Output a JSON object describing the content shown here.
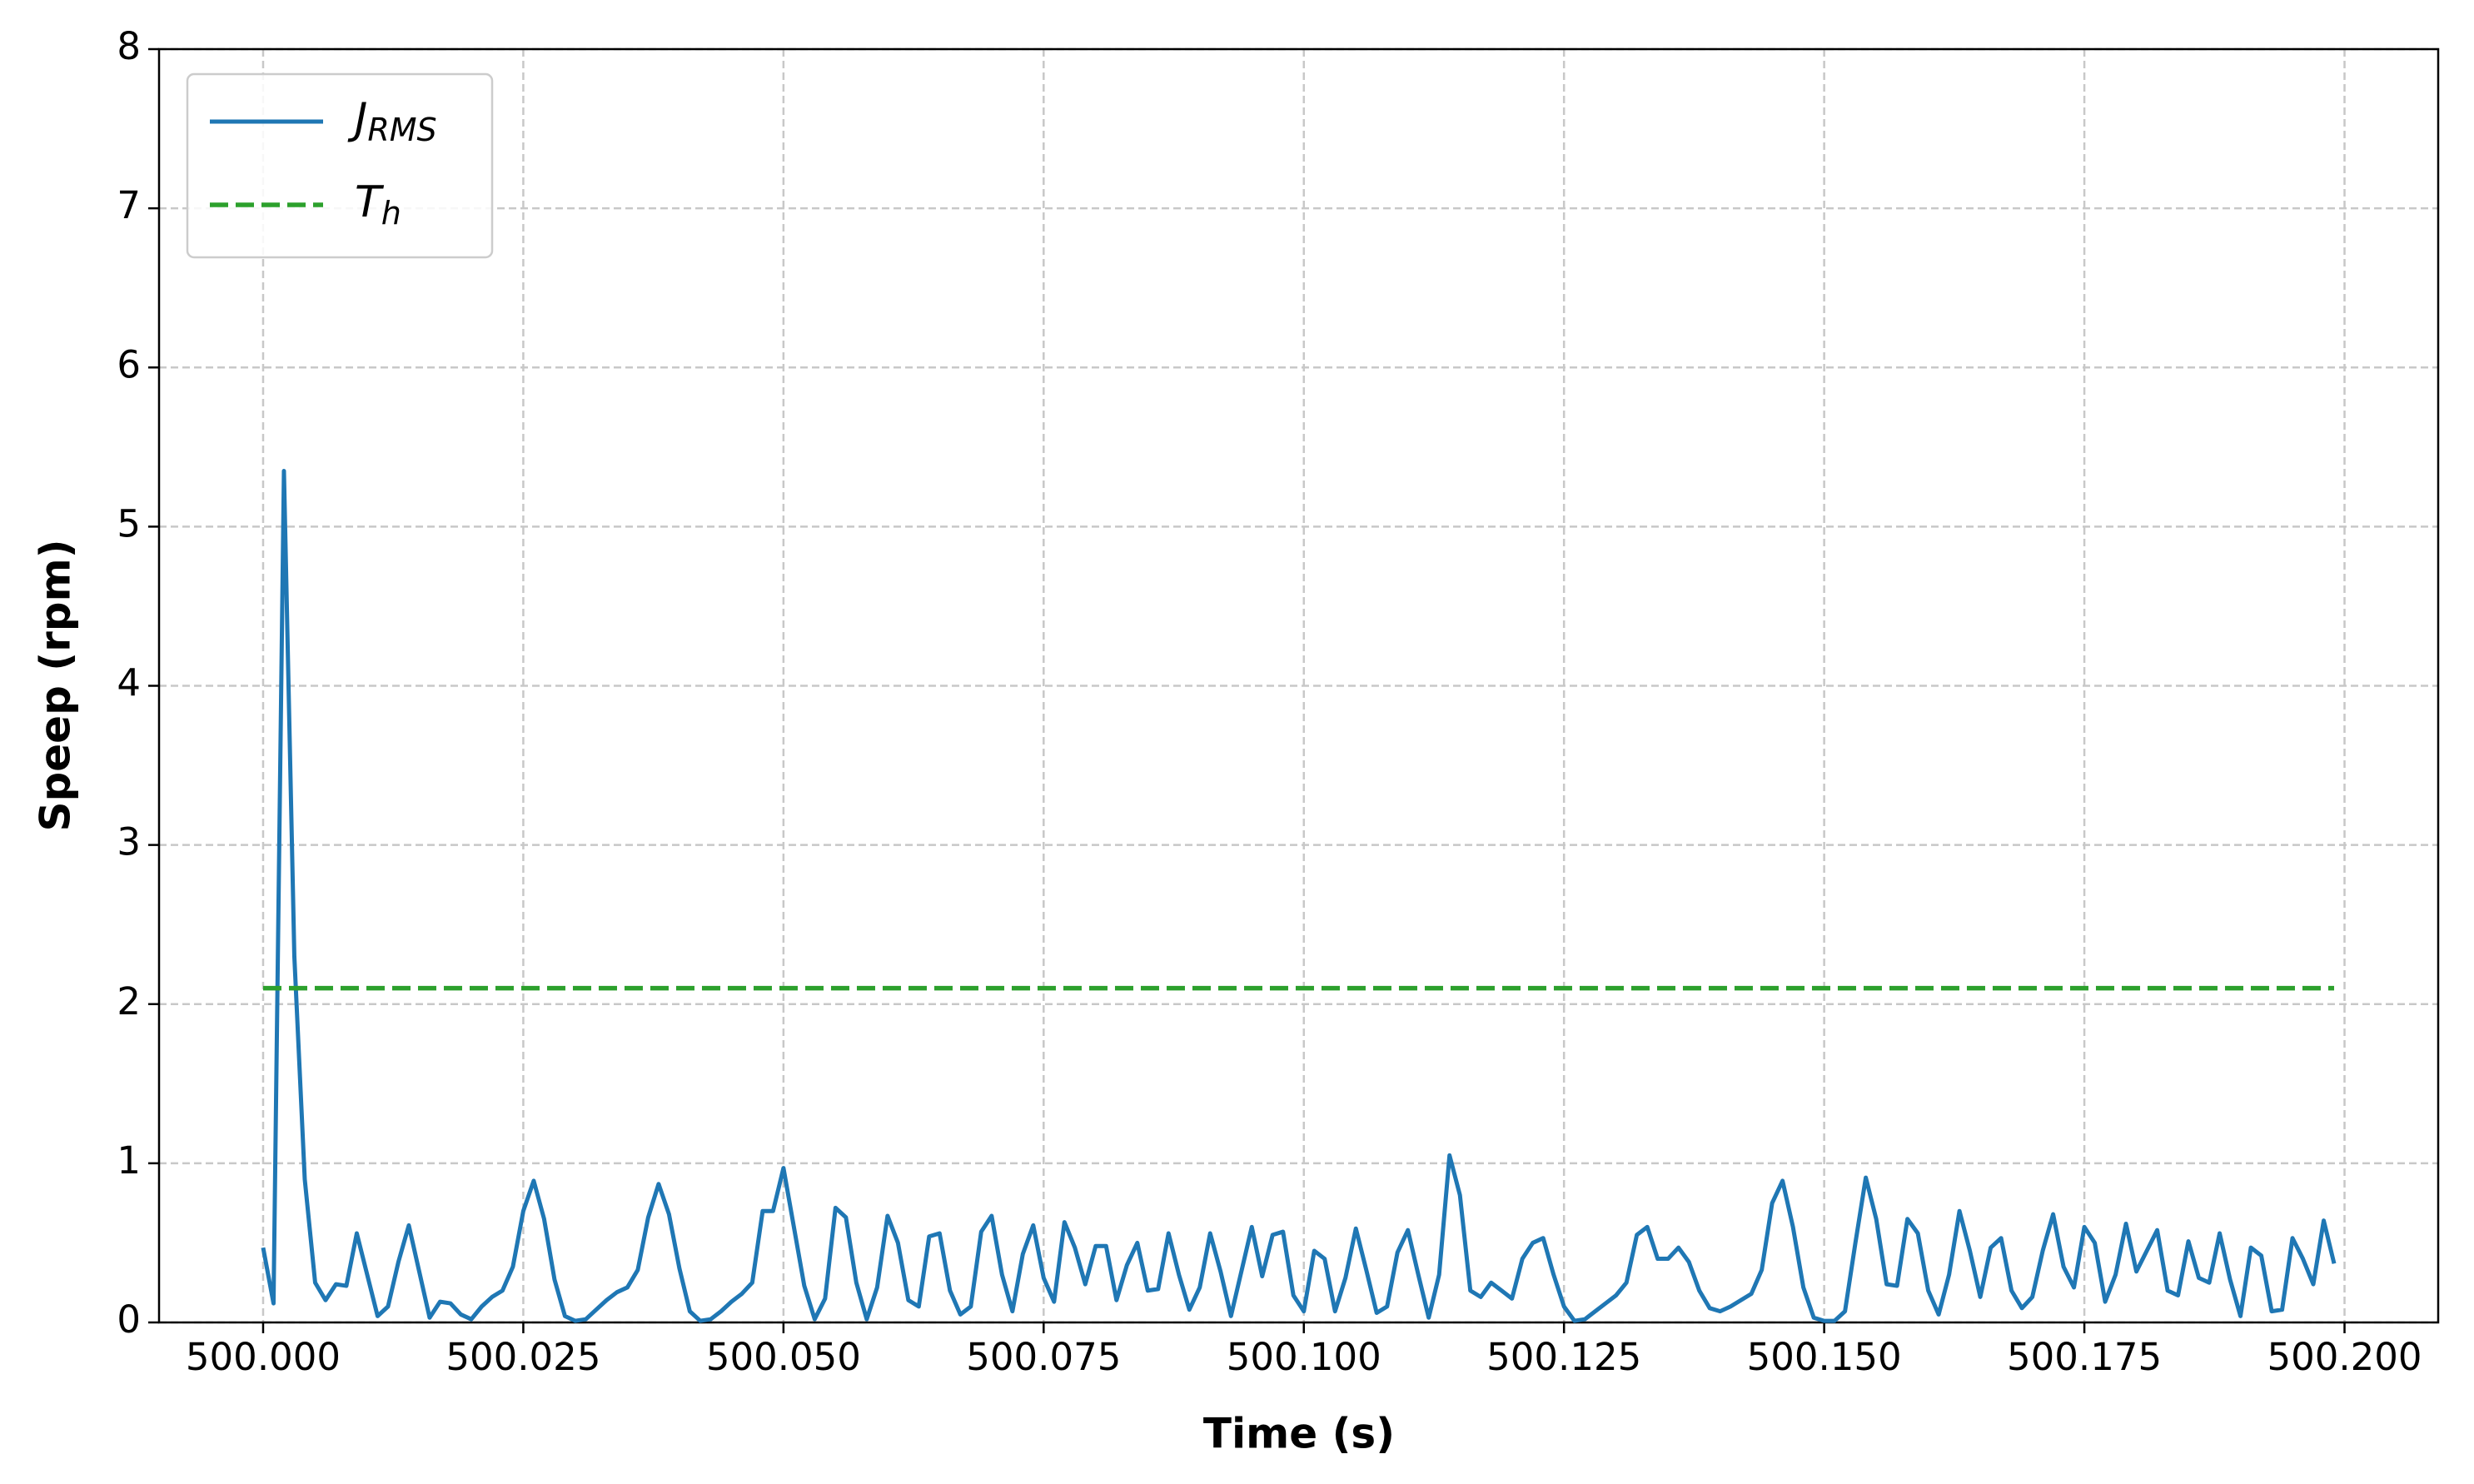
{
  "chart_data": {
    "type": "line",
    "xlabel": "Time (s)",
    "ylabel": "Speep (rpm)",
    "xlim": [
      499.99,
      500.209
    ],
    "ylim": [
      0,
      8
    ],
    "xticks": [
      {
        "value": 500.0,
        "label": "500.000"
      },
      {
        "value": 500.025,
        "label": "500.025"
      },
      {
        "value": 500.05,
        "label": "500.050"
      },
      {
        "value": 500.075,
        "label": "500.075"
      },
      {
        "value": 500.1,
        "label": "500.100"
      },
      {
        "value": 500.125,
        "label": "500.125"
      },
      {
        "value": 500.15,
        "label": "500.150"
      },
      {
        "value": 500.175,
        "label": "500.175"
      },
      {
        "value": 500.2,
        "label": "500.200"
      }
    ],
    "yticks": [
      0,
      1,
      2,
      3,
      4,
      5,
      6,
      7,
      8
    ],
    "grid": true,
    "legend": "upper left",
    "series": [
      {
        "name": "J_RMS",
        "color": "#1f77b4",
        "style": "solid",
        "x": [
          500.0,
          500.001,
          500.002,
          500.003,
          500.004,
          500.005,
          500.006,
          500.007,
          500.008,
          500.009,
          500.01,
          500.011,
          500.012,
          500.013,
          500.014,
          500.015,
          500.016,
          500.017,
          500.018,
          500.019,
          500.02,
          500.021,
          500.022,
          500.023,
          500.024,
          500.025,
          500.026,
          500.027,
          500.028,
          500.029,
          500.03,
          500.031,
          500.032,
          500.033,
          500.034,
          500.035,
          500.036,
          500.037,
          500.038,
          500.039,
          500.04,
          500.041,
          500.042,
          500.043,
          500.044,
          500.045,
          500.046,
          500.047,
          500.048,
          500.049,
          500.05,
          500.051,
          500.052,
          500.053,
          500.054,
          500.055,
          500.056,
          500.057,
          500.058,
          500.059,
          500.06,
          500.061,
          500.062,
          500.063,
          500.064,
          500.065,
          500.066,
          500.067,
          500.068,
          500.069,
          500.07,
          500.071,
          500.072,
          500.073,
          500.074,
          500.075,
          500.076,
          500.077,
          500.078,
          500.079,
          500.08,
          500.081,
          500.082,
          500.083,
          500.084,
          500.085,
          500.086,
          500.087,
          500.088,
          500.089,
          500.09,
          500.091,
          500.092,
          500.093,
          500.094,
          500.095,
          500.096,
          500.097,
          500.098,
          500.099,
          500.1,
          500.101,
          500.102,
          500.103,
          500.104,
          500.105,
          500.106,
          500.107,
          500.108,
          500.109,
          500.11,
          500.111,
          500.112,
          500.113,
          500.114,
          500.115,
          500.116,
          500.117,
          500.118,
          500.119,
          500.12,
          500.121,
          500.122,
          500.123,
          500.124,
          500.125,
          500.126,
          500.127,
          500.128,
          500.129,
          500.13,
          500.131,
          500.132,
          500.133,
          500.134,
          500.135,
          500.136,
          500.137,
          500.138,
          500.139,
          500.14,
          500.141,
          500.142,
          500.143,
          500.144,
          500.145,
          500.146,
          500.147,
          500.148,
          500.149,
          500.15,
          500.151,
          500.152,
          500.153,
          500.154,
          500.155,
          500.156,
          500.157,
          500.158,
          500.159,
          500.16,
          500.161,
          500.162,
          500.163,
          500.164,
          500.165,
          500.166,
          500.167,
          500.168,
          500.169,
          500.17,
          500.171,
          500.172,
          500.173,
          500.174,
          500.175,
          500.176,
          500.177,
          500.178,
          500.179,
          500.18,
          500.181,
          500.182,
          500.183,
          500.184,
          500.185,
          500.186,
          500.187,
          500.188,
          500.189,
          500.19,
          500.191,
          500.192,
          500.193,
          500.194,
          500.195,
          500.196,
          500.197,
          500.198,
          500.199
        ],
        "values": [
          0.47,
          0.12,
          5.35,
          2.3,
          0.9,
          0.25,
          0.14,
          0.24,
          0.23,
          0.56,
          0.3,
          0.04,
          0.1,
          0.38,
          0.61,
          0.32,
          0.03,
          0.13,
          0.12,
          0.05,
          0.02,
          0.1,
          0.16,
          0.2,
          0.35,
          0.7,
          0.89,
          0.65,
          0.27,
          0.04,
          0.01,
          0.02,
          0.08,
          0.14,
          0.19,
          0.22,
          0.33,
          0.66,
          0.87,
          0.68,
          0.34,
          0.07,
          0.01,
          0.02,
          0.07,
          0.13,
          0.18,
          0.25,
          0.7,
          0.7,
          0.97,
          0.6,
          0.23,
          0.02,
          0.15,
          0.72,
          0.66,
          0.25,
          0.02,
          0.22,
          0.67,
          0.5,
          0.14,
          0.1,
          0.54,
          0.56,
          0.2,
          0.05,
          0.1,
          0.57,
          0.67,
          0.3,
          0.07,
          0.43,
          0.61,
          0.28,
          0.13,
          0.63,
          0.47,
          0.24,
          0.48,
          0.48,
          0.14,
          0.36,
          0.5,
          0.2,
          0.21,
          0.56,
          0.3,
          0.08,
          0.22,
          0.56,
          0.32,
          0.04,
          0.32,
          0.6,
          0.29,
          0.55,
          0.57,
          0.17,
          0.07,
          0.45,
          0.4,
          0.07,
          0.28,
          0.59,
          0.33,
          0.06,
          0.1,
          0.44,
          0.58,
          0.3,
          0.03,
          0.3,
          1.05,
          0.8,
          0.2,
          0.16,
          0.25,
          0.2,
          0.15,
          0.4,
          0.5,
          0.53,
          0.3,
          0.1,
          0.01,
          0.02,
          0.07,
          0.12,
          0.17,
          0.25,
          0.55,
          0.6,
          0.4,
          0.4,
          0.47,
          0.38,
          0.2,
          0.09,
          0.07,
          0.1,
          0.14,
          0.18,
          0.33,
          0.75,
          0.89,
          0.6,
          0.22,
          0.03,
          0.01,
          0.01,
          0.07,
          0.5,
          0.91,
          0.65,
          0.24,
          0.23,
          0.65,
          0.56,
          0.2,
          0.05,
          0.3,
          0.7,
          0.45,
          0.16,
          0.47,
          0.53,
          0.2,
          0.09,
          0.16,
          0.45,
          0.68,
          0.35,
          0.22,
          0.6,
          0.5,
          0.13,
          0.3,
          0.62,
          0.32,
          0.45,
          0.58,
          0.2,
          0.17,
          0.51,
          0.28,
          0.25,
          0.56,
          0.27,
          0.04,
          0.47,
          0.42,
          0.07,
          0.08,
          0.53,
          0.4,
          0.24,
          0.64,
          0.37
        ]
      },
      {
        "name": "T_h",
        "color": "#2ca02c",
        "style": "dashed",
        "x": [
          500.0,
          500.199
        ],
        "values": [
          2.1,
          2.1
        ]
      }
    ]
  }
}
